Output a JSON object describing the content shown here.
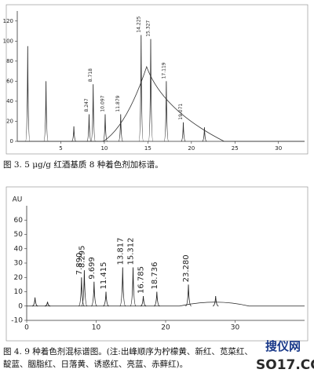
{
  "chart_data": [
    {
      "type": "chromatogram",
      "caption": "图 3. 5 μg/g 红酒基质 8 种着色剂加标谱。",
      "x": [
        1.2,
        3.3,
        6.5,
        8.247,
        8.718,
        10.097,
        11.879,
        14.225,
        15.327,
        17.119,
        19.071,
        21.5
      ],
      "values": [
        95,
        60,
        15,
        27,
        57,
        27,
        27,
        106,
        102,
        60,
        19,
        14
      ],
      "peak_labels": [
        null,
        null,
        null,
        "8.247",
        "8.718",
        "10.097",
        "11.879",
        "14.225",
        "15.327",
        "17.119",
        "19.071",
        null
      ],
      "color": "#333333",
      "xlim": [
        0,
        33
      ],
      "xticks": [
        5,
        10,
        15,
        20,
        25,
        30
      ],
      "ylim": [
        0,
        130
      ],
      "yticks": [
        0,
        20,
        40,
        60,
        80,
        100,
        120
      ]
    },
    {
      "type": "chromatogram",
      "caption": "图 4. 9 种着色剂混标谱图。(注:出峰顺序为柠檬黄、新红、苋菜红、",
      "caption_line2": "靛蓝、胭脂红、日落黄、诱惑红、亮蓝、赤藓红)。",
      "y_label": "AU",
      "x": [
        1.2,
        3.0,
        7.89,
        8.295,
        9.699,
        11.415,
        13.817,
        15.312,
        16.785,
        18.736,
        23.28,
        27.2
      ],
      "values": [
        6,
        3,
        20,
        25,
        17,
        10,
        27,
        27,
        7,
        10,
        15,
        7
      ],
      "peak_labels": [
        null,
        null,
        "7.890",
        "8.295",
        "9.699",
        "11.415",
        "13.817",
        "15.312",
        "16.785",
        "18.736",
        "23.280",
        null
      ],
      "color": "#222222",
      "xlim": [
        0,
        40
      ],
      "xticks": [
        0,
        10,
        20,
        30
      ],
      "ylim": [
        -10,
        70
      ],
      "yticks": [
        -10,
        0,
        10,
        20,
        30,
        40,
        50,
        60
      ]
    }
  ],
  "watermark": [
    "搜仪网",
    "SO17.CC"
  ]
}
